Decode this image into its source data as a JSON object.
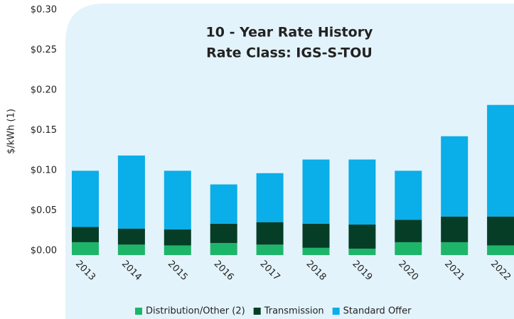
{
  "chart_data": {
    "type": "stacked_bar",
    "title": [
      "10 - Year Rate History",
      "Rate Class: IGS-S-TOU"
    ],
    "y_label": "$/kWh (1)",
    "categories": [
      "2013",
      "2014",
      "2015",
      "2016",
      "2017",
      "2018",
      "2019",
      "2020",
      "2021",
      "2022"
    ],
    "series": [
      {
        "name": "Distribution/Other (2)",
        "color": "#1db56a",
        "values": [
          0.016,
          0.013,
          0.012,
          0.015,
          0.013,
          0.009,
          0.008,
          0.016,
          0.016,
          0.012
        ]
      },
      {
        "name": "Transmission",
        "color": "#063d26",
        "values": [
          0.019,
          0.02,
          0.02,
          0.024,
          0.028,
          0.03,
          0.03,
          0.028,
          0.032,
          0.036
        ]
      },
      {
        "name": "Standard Offer",
        "color": "#0aaee8",
        "values": [
          0.07,
          0.091,
          0.073,
          0.049,
          0.061,
          0.08,
          0.081,
          0.061,
          0.1,
          0.139
        ]
      }
    ],
    "ylim": [
      0,
      0.3
    ],
    "yticks": [
      {
        "value": 0,
        "label": "$0.00"
      },
      {
        "value": 0.05,
        "label": "$0.05"
      },
      {
        "value": 0.1,
        "label": "$0.10"
      },
      {
        "value": 0.15,
        "label": "$0.15"
      },
      {
        "value": 0.2,
        "label": "$0.20"
      },
      {
        "value": 0.25,
        "label": "$0.25"
      },
      {
        "value": 0.3,
        "label": "$0.30"
      }
    ],
    "grid": false,
    "legend": "bottom"
  }
}
